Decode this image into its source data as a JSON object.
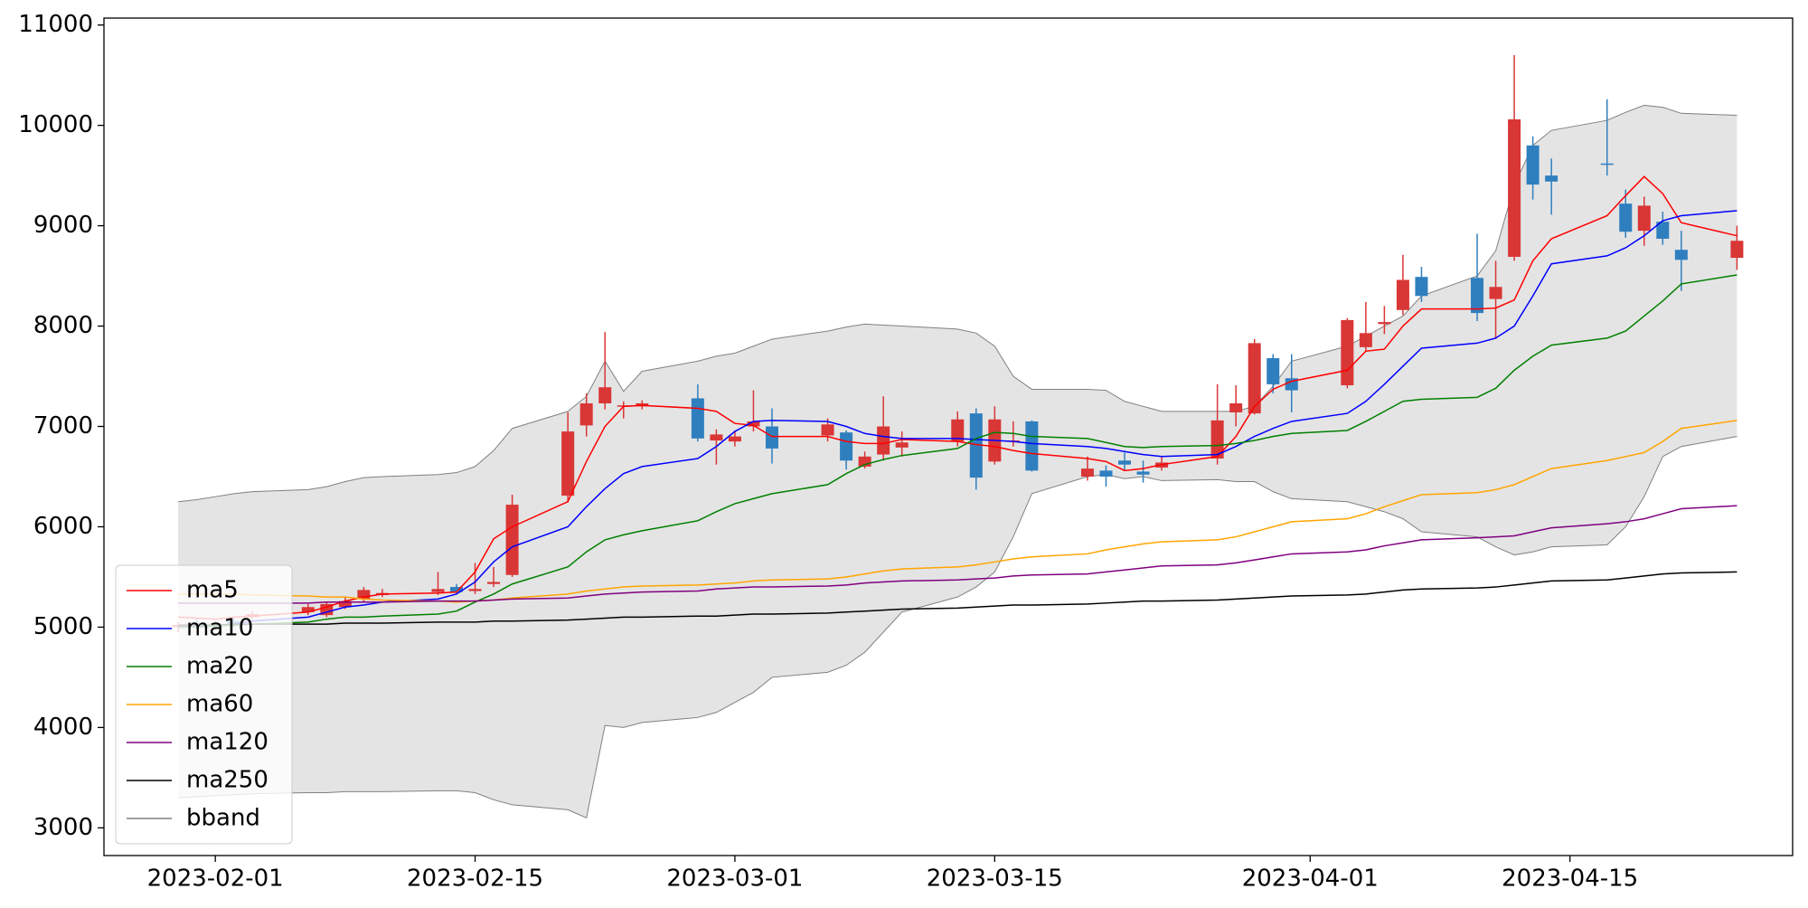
{
  "chart_data": {
    "type": "candlestick",
    "x": [
      "2023-01-30",
      "2023-01-31",
      "2023-02-01",
      "2023-02-02",
      "2023-02-03",
      "2023-02-06",
      "2023-02-07",
      "2023-02-08",
      "2023-02-09",
      "2023-02-10",
      "2023-02-13",
      "2023-02-14",
      "2023-02-15",
      "2023-02-16",
      "2023-02-17",
      "2023-02-20",
      "2023-02-21",
      "2023-02-22",
      "2023-02-23",
      "2023-02-24",
      "2023-02-27",
      "2023-02-28",
      "2023-03-01",
      "2023-03-02",
      "2023-03-03",
      "2023-03-06",
      "2023-03-07",
      "2023-03-08",
      "2023-03-09",
      "2023-03-10",
      "2023-03-13",
      "2023-03-14",
      "2023-03-15",
      "2023-03-16",
      "2023-03-17",
      "2023-03-20",
      "2023-03-21",
      "2023-03-22",
      "2023-03-23",
      "2023-03-24",
      "2023-03-27",
      "2023-03-28",
      "2023-03-29",
      "2023-03-30",
      "2023-03-31",
      "2023-04-03",
      "2023-04-04",
      "2023-04-05",
      "2023-04-06",
      "2023-04-07",
      "2023-04-10",
      "2023-04-11",
      "2023-04-12",
      "2023-04-13",
      "2023-04-14",
      "2023-04-17",
      "2023-04-18",
      "2023-04-19",
      "2023-04-20",
      "2023-04-21",
      "2023-04-24"
    ],
    "open": [
      5000,
      5040,
      5010,
      5060,
      5100,
      5150,
      5120,
      5200,
      5280,
      5320,
      5350,
      5400,
      5360,
      5430,
      5520,
      6310,
      7010,
      7230,
      7200,
      7200,
      7280,
      6860,
      6850,
      7000,
      7000,
      6910,
      6940,
      6600,
      6720,
      6790,
      6850,
      7130,
      6650,
      6850,
      7050,
      6500,
      6560,
      6660,
      6550,
      6590,
      6680,
      7140,
      7130,
      7680,
      7480,
      7410,
      7790,
      8020,
      8160,
      8490,
      8480,
      8270,
      8690,
      9800,
      9500,
      9620,
      9220,
      8950,
      9040,
      8760,
      8680
    ],
    "high": [
      5050,
      5100,
      5060,
      5090,
      5160,
      5230,
      5250,
      5300,
      5400,
      5380,
      5550,
      5430,
      5640,
      5600,
      6320,
      7140,
      7330,
      7940,
      7250,
      7260,
      7420,
      6970,
      6960,
      7360,
      7180,
      7080,
      6960,
      6750,
      7300,
      6950,
      7150,
      7180,
      7200,
      7050,
      7060,
      6700,
      6610,
      6740,
      6660,
      6700,
      7420,
      7410,
      7870,
      7720,
      7720,
      8080,
      8240,
      8200,
      8710,
      8590,
      8920,
      8650,
      10700,
      9890,
      9670,
      10260,
      9360,
      9290,
      9140,
      8950,
      9000
    ],
    "low": [
      4950,
      4980,
      4970,
      5000,
      5080,
      5120,
      5100,
      5180,
      5250,
      5300,
      5320,
      5330,
      5330,
      5400,
      5500,
      6240,
      6900,
      7170,
      7080,
      7170,
      6850,
      6620,
      6800,
      6950,
      6630,
      6850,
      6570,
      6580,
      6660,
      6700,
      6800,
      6370,
      6620,
      6800,
      6550,
      6460,
      6400,
      6560,
      6440,
      6560,
      6620,
      7000,
      7120,
      7330,
      7140,
      7380,
      7750,
      7920,
      8110,
      8240,
      8050,
      7870,
      8650,
      9260,
      9110,
      9500,
      8880,
      8800,
      8810,
      8350,
      8560
    ],
    "close": [
      5020,
      5000,
      5040,
      5030,
      5130,
      5200,
      5230,
      5260,
      5370,
      5340,
      5380,
      5350,
      5380,
      5450,
      6220,
      6950,
      7230,
      7390,
      7210,
      7230,
      6880,
      6920,
      6900,
      7050,
      6780,
      7020,
      6660,
      6700,
      7000,
      6840,
      7070,
      6490,
      7070,
      6860,
      6560,
      6580,
      6500,
      6620,
      6520,
      6640,
      7060,
      7230,
      7830,
      7420,
      7360,
      8060,
      7930,
      8040,
      8460,
      8300,
      8130,
      8390,
      10060,
      9410,
      9440,
      9610,
      8940,
      9200,
      8870,
      8660,
      8850
    ],
    "up_color": "#d93636",
    "down_color": "#2f7fbf",
    "series": [
      {
        "name": "ma5",
        "color": "#ff0000",
        "values": [
          5100,
          5090,
          5080,
          5100,
          5110,
          5150,
          5200,
          5260,
          5300,
          5330,
          5340,
          5350,
          5550,
          5880,
          6000,
          6250,
          6650,
          7000,
          7200,
          7210,
          7180,
          7150,
          7030,
          7010,
          6900,
          6900,
          6850,
          6830,
          6830,
          6870,
          6850,
          6820,
          6800,
          6760,
          6730,
          6680,
          6650,
          6560,
          6580,
          6620,
          6700,
          6900,
          7200,
          7370,
          7450,
          7560,
          7750,
          7770,
          8000,
          8170,
          8170,
          8180,
          8260,
          8650,
          8870,
          9100,
          9300,
          9490,
          9320,
          9030,
          8900
        ]
      },
      {
        "name": "ma10",
        "color": "#0000ff",
        "values": [
          5000,
          5010,
          5020,
          5030,
          5060,
          5100,
          5150,
          5200,
          5220,
          5250,
          5280,
          5330,
          5450,
          5650,
          5800,
          6000,
          6200,
          6380,
          6530,
          6600,
          6680,
          6800,
          6950,
          7050,
          7060,
          7050,
          7000,
          6930,
          6900,
          6880,
          6880,
          6870,
          6860,
          6850,
          6830,
          6800,
          6780,
          6750,
          6720,
          6700,
          6720,
          6800,
          6900,
          6980,
          7050,
          7130,
          7250,
          7420,
          7600,
          7780,
          7830,
          7880,
          8000,
          8300,
          8620,
          8700,
          8780,
          8900,
          9050,
          9100,
          9150
        ]
      },
      {
        "name": "ma20",
        "color": "#008000",
        "values": [
          5000,
          5000,
          5010,
          5020,
          5030,
          5050,
          5080,
          5100,
          5100,
          5110,
          5130,
          5160,
          5250,
          5330,
          5430,
          5600,
          5750,
          5870,
          5920,
          5960,
          6060,
          6150,
          6230,
          6280,
          6330,
          6420,
          6530,
          6620,
          6670,
          6710,
          6780,
          6880,
          6940,
          6930,
          6900,
          6880,
          6840,
          6800,
          6790,
          6800,
          6810,
          6830,
          6860,
          6900,
          6930,
          6960,
          7050,
          7150,
          7250,
          7270,
          7290,
          7380,
          7560,
          7700,
          7810,
          7880,
          7950,
          8100,
          8250,
          8420,
          8510
        ]
      },
      {
        "name": "ma60",
        "color": "#ffa500",
        "values": [
          5330,
          5330,
          5330,
          5330,
          5320,
          5310,
          5300,
          5300,
          5280,
          5270,
          5260,
          5250,
          5260,
          5270,
          5290,
          5330,
          5360,
          5380,
          5400,
          5410,
          5420,
          5430,
          5440,
          5460,
          5470,
          5480,
          5500,
          5530,
          5560,
          5580,
          5600,
          5620,
          5650,
          5680,
          5700,
          5730,
          5770,
          5800,
          5830,
          5850,
          5870,
          5900,
          5950,
          6000,
          6050,
          6080,
          6130,
          6200,
          6260,
          6320,
          6340,
          6370,
          6420,
          6500,
          6580,
          6660,
          6700,
          6740,
          6850,
          6980,
          7060
        ]
      },
      {
        "name": "ma120",
        "color": "#800080",
        "values": [
          5240,
          5240,
          5240,
          5240,
          5240,
          5240,
          5250,
          5250,
          5250,
          5250,
          5260,
          5260,
          5260,
          5270,
          5280,
          5290,
          5310,
          5330,
          5340,
          5350,
          5360,
          5380,
          5390,
          5400,
          5400,
          5410,
          5420,
          5440,
          5450,
          5460,
          5470,
          5480,
          5490,
          5510,
          5520,
          5530,
          5550,
          5570,
          5590,
          5610,
          5620,
          5640,
          5670,
          5700,
          5730,
          5750,
          5770,
          5810,
          5840,
          5870,
          5890,
          5900,
          5910,
          5950,
          5990,
          6030,
          6050,
          6080,
          6130,
          6180,
          6210
        ]
      },
      {
        "name": "ma250",
        "color": "#000000",
        "values": [
          5020,
          5020,
          5020,
          5030,
          5030,
          5030,
          5030,
          5040,
          5040,
          5040,
          5050,
          5050,
          5050,
          5060,
          5060,
          5070,
          5080,
          5090,
          5100,
          5100,
          5110,
          5110,
          5120,
          5130,
          5130,
          5140,
          5150,
          5160,
          5170,
          5180,
          5190,
          5200,
          5210,
          5220,
          5220,
          5230,
          5240,
          5250,
          5260,
          5260,
          5270,
          5280,
          5290,
          5300,
          5310,
          5320,
          5330,
          5350,
          5370,
          5380,
          5390,
          5400,
          5420,
          5440,
          5460,
          5470,
          5490,
          5510,
          5530,
          5540,
          5550
        ]
      }
    ],
    "bband": {
      "name": "bband",
      "color": "#808080",
      "fill": "#e4e4e4",
      "upper": [
        6250,
        6270,
        6300,
        6330,
        6350,
        6370,
        6400,
        6450,
        6490,
        6500,
        6520,
        6540,
        6600,
        6760,
        6980,
        7150,
        7300,
        7650,
        7350,
        7550,
        7650,
        7700,
        7730,
        7800,
        7870,
        7950,
        7990,
        8020,
        8010,
        8000,
        7970,
        7930,
        7800,
        7500,
        7370,
        7370,
        7360,
        7250,
        7200,
        7150,
        7150,
        7150,
        7200,
        7400,
        7650,
        7800,
        7900,
        8000,
        8100,
        8300,
        8500,
        8750,
        9400,
        9800,
        9950,
        10050,
        10130,
        10200,
        10180,
        10120,
        10100
      ],
      "lower": [
        3300,
        3310,
        3320,
        3330,
        3340,
        3350,
        3350,
        3360,
        3360,
        3360,
        3370,
        3370,
        3350,
        3280,
        3230,
        3180,
        3100,
        4020,
        4000,
        4050,
        4100,
        4150,
        4250,
        4350,
        4500,
        4550,
        4620,
        4750,
        4950,
        5150,
        5300,
        5400,
        5550,
        5900,
        6330,
        6500,
        6520,
        6480,
        6500,
        6460,
        6470,
        6450,
        6450,
        6350,
        6280,
        6250,
        6200,
        6150,
        6080,
        5950,
        5900,
        5800,
        5720,
        5750,
        5800,
        5820,
        6000,
        6300,
        6700,
        6800,
        6900
      ]
    },
    "xlim": [
      "2023-01-26",
      "2023-04-27"
    ],
    "ylim": [
      2724,
      11069
    ],
    "xticks": [
      "2023-02-01",
      "2023-02-15",
      "2023-03-01",
      "2023-03-15",
      "2023-04-01",
      "2023-04-15"
    ],
    "yticks": [
      3000,
      4000,
      5000,
      6000,
      7000,
      8000,
      9000,
      10000,
      11000
    ],
    "legend": "lower left"
  }
}
